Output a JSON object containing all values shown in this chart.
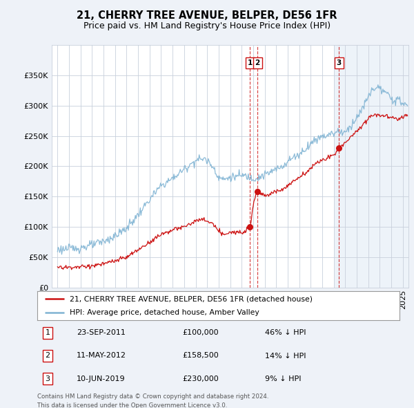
{
  "title": "21, CHERRY TREE AVENUE, BELPER, DE56 1FR",
  "subtitle": "Price paid vs. HM Land Registry's House Price Index (HPI)",
  "ylabel_ticks": [
    "£0",
    "£50K",
    "£100K",
    "£150K",
    "£200K",
    "£250K",
    "£300K",
    "£350K"
  ],
  "ytick_vals": [
    0,
    50000,
    100000,
    150000,
    200000,
    250000,
    300000,
    350000
  ],
  "ylim": [
    0,
    400000
  ],
  "xlim_start": 1994.5,
  "xlim_end": 2025.5,
  "hpi_color": "#7fb3d3",
  "sale_color": "#cc1111",
  "sale_points": [
    {
      "year": 2011.73,
      "price": 100000,
      "label": "1",
      "date": "23-SEP-2011",
      "price_str": "£100,000",
      "pct": "46% ↓ HPI"
    },
    {
      "year": 2012.37,
      "price": 158500,
      "label": "2",
      "date": "11-MAY-2012",
      "price_str": "£158,500",
      "pct": "14% ↓ HPI"
    },
    {
      "year": 2019.44,
      "price": 230000,
      "label": "3",
      "date": "10-JUN-2019",
      "price_str": "£230,000",
      "pct": "9% ↓ HPI"
    }
  ],
  "legend_sale": "21, CHERRY TREE AVENUE, BELPER, DE56 1FR (detached house)",
  "legend_hpi": "HPI: Average price, detached house, Amber Valley",
  "footer1": "Contains HM Land Registry data © Crown copyright and database right 2024.",
  "footer2": "This data is licensed under the Open Government Licence v3.0.",
  "background_color": "#eef2f8",
  "plot_bg_color": "#ffffff",
  "plot_bg_right_color": "#dde8f5",
  "grid_color": "#c8d0dc",
  "title_fontsize": 10.5,
  "subtitle_fontsize": 9,
  "tick_fontsize": 8
}
